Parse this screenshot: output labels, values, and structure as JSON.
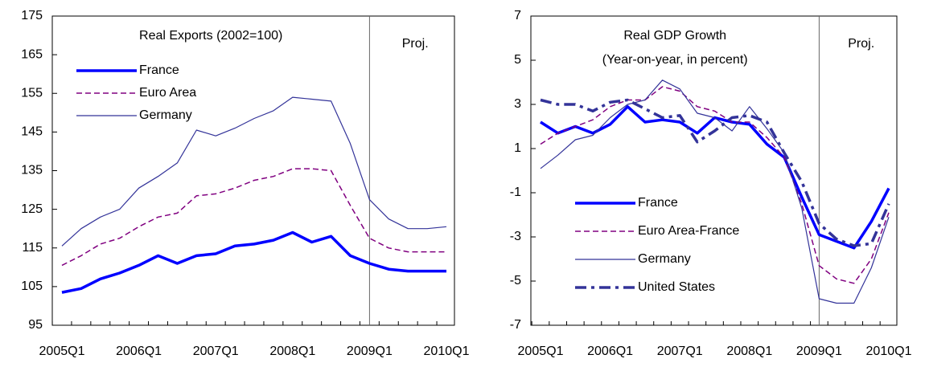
{
  "chart_data": [
    {
      "type": "line",
      "title": "Real Exports (2002=100)",
      "annotation": "Proj.",
      "vline": "2009Q1",
      "categories": [
        "2005Q1",
        null,
        null,
        null,
        "2006Q1",
        null,
        null,
        null,
        "2007Q1",
        null,
        null,
        null,
        "2008Q1",
        null,
        null,
        null,
        "2009Q1",
        null,
        null,
        null,
        "2010Q1"
      ],
      "ylim": [
        95,
        175
      ],
      "yticks": [
        95,
        105,
        115,
        125,
        135,
        145,
        155,
        165,
        175
      ],
      "legend": "upper-left",
      "series": [
        {
          "name": "France",
          "color": "#0000ff",
          "style": "solid-thick",
          "values": [
            103.5,
            104.5,
            107,
            108.5,
            110.5,
            113,
            111,
            113,
            113.5,
            115.5,
            116,
            117,
            119,
            116.5,
            118,
            113,
            111,
            109.5,
            109,
            109,
            109
          ]
        },
        {
          "name": "Euro Area",
          "color": "#800080",
          "style": "dashed",
          "values": [
            110.5,
            113,
            116,
            117.5,
            120.5,
            123,
            124,
            128.5,
            129,
            130.5,
            132.5,
            133.5,
            135.5,
            135.5,
            135,
            126,
            117.5,
            115,
            114,
            114,
            114
          ]
        },
        {
          "name": "Germany",
          "color": "#333399",
          "style": "thin",
          "values": [
            115.5,
            120,
            123,
            125,
            130.5,
            133.5,
            137,
            145.5,
            144,
            146,
            148.5,
            150.5,
            154,
            153.5,
            153,
            142,
            127.5,
            122.5,
            120,
            120,
            120.5
          ]
        }
      ]
    },
    {
      "type": "line",
      "title": "Real GDP Growth",
      "subtitle": "(Year-on-year, in percent)",
      "annotation": "Proj.",
      "vline": "2009Q1",
      "categories": [
        "2005Q1",
        null,
        null,
        null,
        "2006Q1",
        null,
        null,
        null,
        "2007Q1",
        null,
        null,
        null,
        "2008Q1",
        null,
        null,
        null,
        "2009Q1",
        null,
        null,
        null,
        "2010Q1"
      ],
      "ylim": [
        -7,
        7
      ],
      "yticks": [
        -7,
        -5,
        -3,
        -1,
        1,
        3,
        5,
        7
      ],
      "legend": "lower-left",
      "series": [
        {
          "name": "France",
          "color": "#0000ff",
          "style": "solid-thick",
          "values": [
            2.2,
            1.7,
            2.0,
            1.7,
            2.1,
            2.9,
            2.2,
            2.3,
            2.2,
            1.7,
            2.4,
            2.2,
            2.1,
            1.2,
            0.6,
            -1.2,
            -2.9,
            -3.2,
            -3.5,
            -2.3,
            -0.8
          ]
        },
        {
          "name": "Euro Area-France",
          "color": "#800080",
          "style": "dashed",
          "values": [
            1.2,
            1.7,
            2.0,
            2.3,
            2.9,
            3.2,
            3.2,
            3.8,
            3.6,
            2.9,
            2.7,
            2.2,
            2.2,
            1.5,
            0.6,
            -1.5,
            -4.3,
            -4.9,
            -5.1,
            -4.0,
            -1.9
          ]
        },
        {
          "name": "Germany",
          "color": "#333399",
          "style": "thin",
          "values": [
            0.1,
            0.7,
            1.4,
            1.6,
            2.4,
            3.0,
            3.2,
            4.1,
            3.7,
            2.6,
            2.4,
            1.8,
            2.9,
            1.9,
            0.8,
            -1.7,
            -5.8,
            -6.0,
            -6.0,
            -4.4,
            -2.1
          ]
        },
        {
          "name": "United States",
          "color": "#333399",
          "style": "dashdot",
          "values": [
            3.2,
            3.0,
            3.0,
            2.7,
            3.1,
            3.2,
            2.8,
            2.4,
            2.5,
            1.3,
            1.8,
            2.4,
            2.5,
            2.2,
            0.8,
            -0.5,
            -2.4,
            -3.1,
            -3.4,
            -3.3,
            -1.5
          ]
        }
      ]
    }
  ]
}
